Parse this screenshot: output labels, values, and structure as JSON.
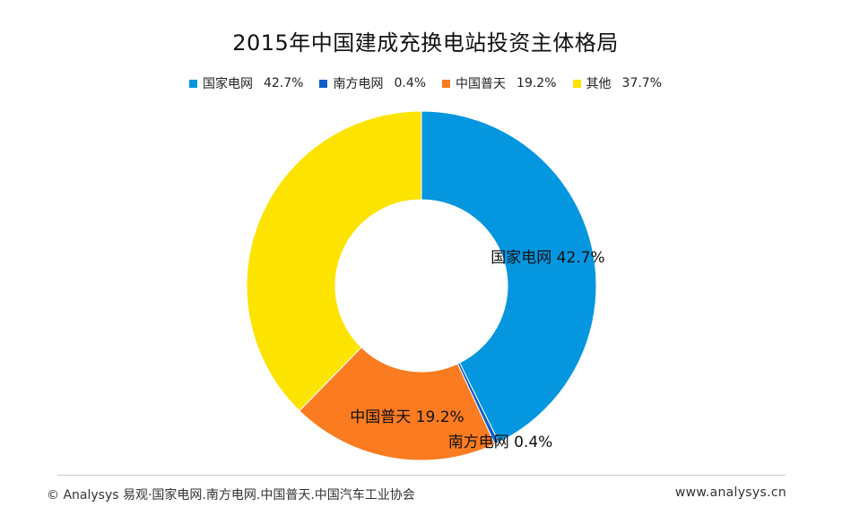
{
  "chart_data": {
    "type": "pie",
    "variant": "donut",
    "title": "2015年中国建成充换电站投资主体格局",
    "series": [
      {
        "name": "国家电网",
        "value": 42.7,
        "label": "42.7%",
        "color": "#0596e0"
      },
      {
        "name": "南方电网",
        "value": 0.4,
        "label": "0.4%",
        "color": "#0a5fc9"
      },
      {
        "name": "中国普天",
        "value": 19.2,
        "label": "19.2%",
        "color": "#fb7b20"
      },
      {
        "name": "其他",
        "value": 37.7,
        "label": "37.7%",
        "color": "#fde300"
      }
    ],
    "legend_position": "top"
  },
  "footer": {
    "source": "© Analysys 易观·国家电网.南方电网.中国普天.中国汽车工业协会",
    "website": "www.analysys.cn"
  }
}
